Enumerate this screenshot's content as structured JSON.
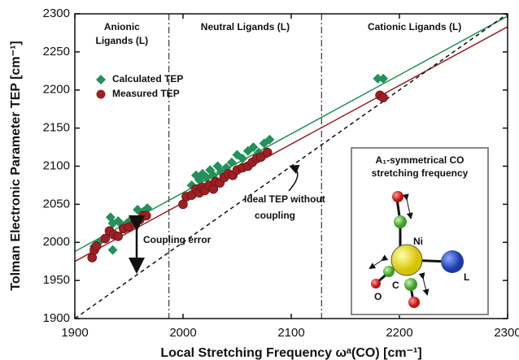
{
  "chart_data": {
    "type": "scatter",
    "x_label": "Local Stretching Frequency ωᵃ(CO) [cm⁻¹]",
    "y_label": "Tolman Electronic Parameter TEP [cm⁻¹]",
    "xlim": [
      1900,
      2300
    ],
    "ylim": [
      1900,
      2300
    ],
    "xticks": [
      1900,
      2000,
      2100,
      2200,
      2300
    ],
    "yticks": [
      1900,
      1950,
      2000,
      2050,
      2100,
      2150,
      2200,
      2250,
      2300
    ],
    "legend": "upper left",
    "series": [
      {
        "name": "Calculated TEP",
        "color": "#22915a",
        "marker": "diamond",
        "x": [
          1918,
          1922,
          1933,
          1935,
          1940,
          1944,
          1948,
          1952,
          1958,
          1963,
          1967,
          1935,
          2003,
          2008,
          2012,
          2015,
          2018,
          2022,
          2025,
          2028,
          2032,
          2035,
          2040,
          2045,
          2050,
          2055,
          2060,
          2065,
          2070,
          2075,
          2080,
          2180,
          2185
        ],
        "values": [
          1995,
          2000,
          2033,
          1990,
          2028,
          2022,
          2025,
          2030,
          2043,
          2040,
          2045,
          2025,
          2060,
          2075,
          2088,
          2082,
          2090,
          2085,
          2095,
          2088,
          2100,
          2092,
          2098,
          2105,
          2115,
          2110,
          2120,
          2125,
          2118,
          2130,
          2135,
          2215,
          2215
        ]
      },
      {
        "name": "Measured TEP",
        "color": "#9e1f24",
        "marker": "circle",
        "x": [
          1916,
          1918,
          1920,
          1928,
          1932,
          1936,
          1940,
          1945,
          1950,
          1955,
          1960,
          1963,
          1966,
          2000,
          2003,
          2008,
          2012,
          2015,
          2018,
          2020,
          2024,
          2028,
          2030,
          2034,
          2038,
          2042,
          2046,
          2050,
          2055,
          2060,
          2064,
          2068,
          2072,
          2078,
          2182,
          2185
        ],
        "values": [
          1980,
          1990,
          1995,
          2005,
          2015,
          2010,
          2008,
          2018,
          2020,
          2025,
          2030,
          2035,
          2035,
          2050,
          2060,
          2062,
          2070,
          2065,
          2072,
          2068,
          2075,
          2070,
          2080,
          2078,
          2085,
          2090,
          2088,
          2095,
          2098,
          2100,
          2105,
          2110,
          2112,
          2118,
          2193,
          2190
        ]
      }
    ],
    "lines": [
      {
        "x": [
          1900,
          2300
        ],
        "y": [
          1988,
          2297
        ],
        "color": "#22915a",
        "dash": false
      },
      {
        "x": [
          1900,
          2300
        ],
        "y": [
          1975,
          2283
        ],
        "color": "#9e1f24",
        "dash": false
      },
      {
        "x": [
          1900,
          2300
        ],
        "y": [
          1900,
          2300
        ],
        "color": "#111111",
        "dash": true
      }
    ],
    "dividers": [
      1987,
      2128
    ],
    "region_labels": [
      [
        "Anionic",
        "Ligands (L)"
      ],
      [
        "Neutral Ligands (L)"
      ],
      [
        "Cationic Ligands (L)"
      ]
    ],
    "annotations": {
      "coupling_error": "Coupling error",
      "ideal": [
        "Ideal TEP without",
        "coupling"
      ]
    },
    "inset": {
      "title": [
        "A₁-symmetrical CO",
        "stretching frequency"
      ],
      "ni": "Ni",
      "l": "L",
      "c": "C",
      "o": "O"
    }
  }
}
